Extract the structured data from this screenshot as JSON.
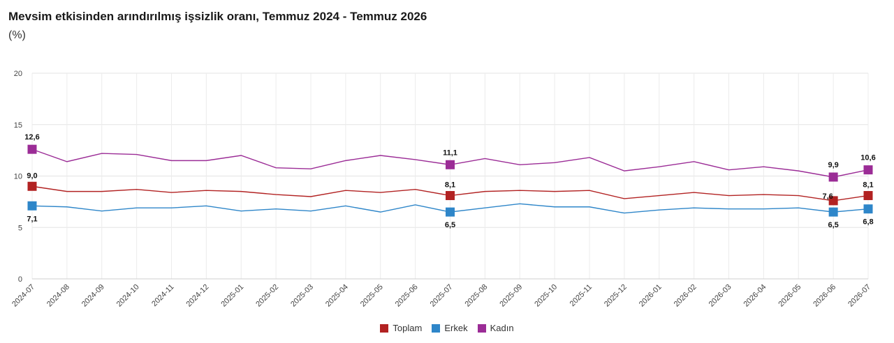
{
  "header": {
    "title": "Mevsim etkisinden arındırılmış işsizlik oranı, Temmuz 2024 - Temmuz 2026",
    "subtitle": "(%)"
  },
  "chart_data": {
    "type": "line",
    "categories": [
      "2024-07",
      "2024-08",
      "2024-09",
      "2024-10",
      "2024-11",
      "2024-12",
      "2025-01",
      "2025-02",
      "2025-03",
      "2025-04",
      "2025-05",
      "2025-06",
      "2025-07",
      "2025-08",
      "2025-09",
      "2025-10",
      "2025-11",
      "2025-12",
      "2026-01",
      "2026-02",
      "2026-03",
      "2026-04",
      "2026-05",
      "2026-06",
      "2026-07"
    ],
    "ylim": [
      0,
      20
    ],
    "yticks": [
      0,
      5,
      10,
      15,
      20
    ],
    "grid": true,
    "legend_position": "bottom-center",
    "series": [
      {
        "name": "Toplam",
        "color": "#b22222",
        "values": [
          9.0,
          8.5,
          8.5,
          8.7,
          8.4,
          8.6,
          8.5,
          8.2,
          8.0,
          8.6,
          8.4,
          8.7,
          8.1,
          8.5,
          8.6,
          8.5,
          8.6,
          7.8,
          8.1,
          8.4,
          8.1,
          8.2,
          8.1,
          7.6,
          8.1
        ],
        "labels": {
          "0": "9,0",
          "12": "8,1",
          "23": "7,6",
          "24": "8,1"
        }
      },
      {
        "name": "Erkek",
        "color": "#2e86c9",
        "values": [
          7.1,
          7.0,
          6.6,
          6.9,
          6.9,
          7.1,
          6.6,
          6.8,
          6.6,
          7.1,
          6.5,
          7.2,
          6.5,
          6.9,
          7.3,
          7.0,
          7.0,
          6.4,
          6.7,
          6.9,
          6.8,
          6.8,
          6.9,
          6.5,
          6.8
        ],
        "labels": {
          "0": "7,1",
          "12": "6,5",
          "23": "6,5",
          "24": "6,8"
        }
      },
      {
        "name": "Kadın",
        "color": "#9b2c96",
        "values": [
          12.6,
          11.4,
          12.2,
          12.1,
          11.5,
          11.5,
          12.0,
          10.8,
          10.7,
          11.5,
          12.0,
          11.6,
          11.1,
          11.7,
          11.1,
          11.3,
          11.8,
          10.5,
          10.9,
          11.4,
          10.6,
          10.9,
          10.5,
          9.9,
          10.6
        ],
        "labels": {
          "0": "12,6",
          "12": "11,1",
          "23": "9,9",
          "24": "10,6"
        }
      }
    ]
  }
}
